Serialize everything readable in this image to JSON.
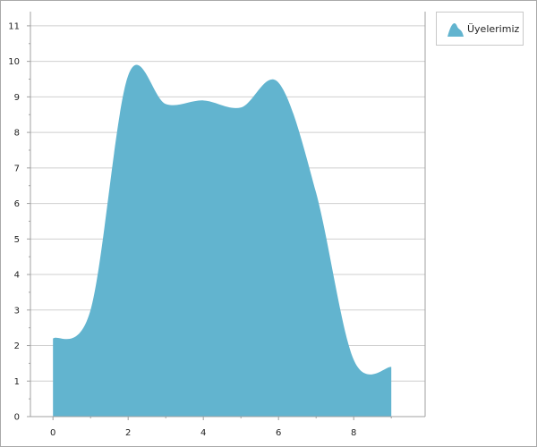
{
  "chart_data": {
    "type": "area",
    "smooth": true,
    "x": [
      0,
      1,
      2,
      3,
      4,
      5,
      6,
      7,
      8,
      9
    ],
    "series": [
      {
        "name": "Üyelerimiz",
        "values": [
          2.2,
          3.0,
          9.6,
          8.8,
          8.9,
          8.7,
          9.4,
          6.3,
          1.6,
          1.4
        ]
      }
    ],
    "xlim": [
      -0.6,
      9.9
    ],
    "ylim": [
      0,
      11.4
    ],
    "x_ticks": [
      "0",
      "2",
      "4",
      "6",
      "8"
    ],
    "y_ticks": [
      "0",
      "1",
      "2",
      "3",
      "4",
      "5",
      "6",
      "7",
      "8",
      "9",
      "10",
      "11"
    ],
    "grid": "horizontal",
    "legend": "top-right",
    "colors": {
      "area": "#62b4cf",
      "grid": "#cfcfcf",
      "axis": "#a0a0a0"
    }
  }
}
